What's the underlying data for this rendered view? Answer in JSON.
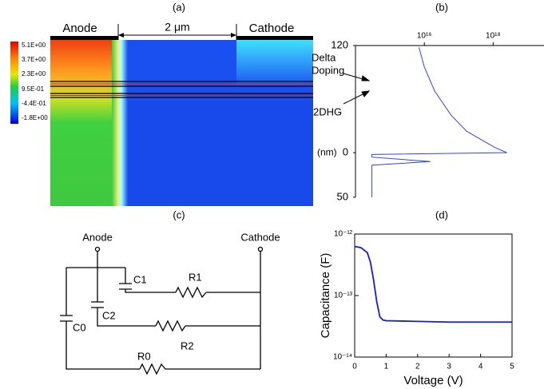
{
  "panel_labels": [
    "(a)",
    "(b)",
    "(c)",
    "(d)"
  ],
  "simulation": {
    "anode": "Anode",
    "cathode": "Cathode",
    "width": "2 μm",
    "colorbar": [
      "5.1E+00",
      "3.7E+00",
      "2.3E+00",
      "9.5E-01",
      "-4.4E-01",
      "-1.8E+00"
    ]
  },
  "circuit": {
    "anode": "Anode",
    "cathode": "Cathode",
    "capacitors": [
      "C1",
      "C2",
      "C0"
    ],
    "resistors": [
      "R1",
      "R2",
      "R0"
    ]
  },
  "chart_data": [
    {
      "type": "line",
      "xscale": "log",
      "xlim": [
        100000000000000.0,
        3e+19
      ],
      "xticks": [
        {
          "value": 1e+16,
          "label": "10¹⁶"
        },
        {
          "value": 1e+18,
          "label": "10¹⁸"
        }
      ],
      "ylim": [
        50,
        -120
      ],
      "yticks": [
        50,
        0,
        {
          "value": -120,
          "label": "120"
        }
      ],
      "y_label": "(nm)",
      "annotations": [
        "Delta",
        "Doping",
        "2DHG"
      ],
      "series": [
        {
          "color": "#3344dd",
          "x": [
            300000000000000.0,
            300000000000000.0,
            1.5e+16,
            300000000000000.0,
            300000000000000.0,
            2.5e+18,
            1.1e+18,
            1.7e+17,
            6e+16,
            2e+16,
            1e+16,
            7000000000000000.0
          ],
          "values": [
            50,
            14,
            10,
            5,
            2,
            0,
            -6,
            -24,
            -42,
            -69,
            -96,
            -118
          ]
        }
      ]
    },
    {
      "type": "line",
      "yscale": "log",
      "xlim": [
        0,
        5
      ],
      "xticks": [
        0,
        1,
        2,
        3,
        4,
        5
      ],
      "ylim": [
        1e-14,
        1e-12
      ],
      "yticks": [
        {
          "value": 1e-14,
          "label": "10⁻¹⁴"
        },
        {
          "value": 1e-13,
          "label": "10⁻¹³"
        },
        {
          "value": 1e-12,
          "label": "10⁻¹²"
        }
      ],
      "x_label": "Voltage (V)",
      "y_label": "Capacitance (F)",
      "series": [
        {
          "color": "#1a1ad6",
          "x": [
            0,
            0.2,
            0.4,
            0.5,
            0.6,
            0.7,
            0.8,
            0.9,
            1.0,
            2,
            3,
            4,
            5
          ],
          "values": [
            6.3e-13,
            6e-13,
            5e-13,
            3.5e-13,
            1.8e-13,
            8e-14,
            4.5e-14,
            4e-14,
            3.9e-14,
            3.8e-14,
            3.7e-14,
            3.7e-14,
            3.7e-14
          ]
        }
      ]
    }
  ]
}
